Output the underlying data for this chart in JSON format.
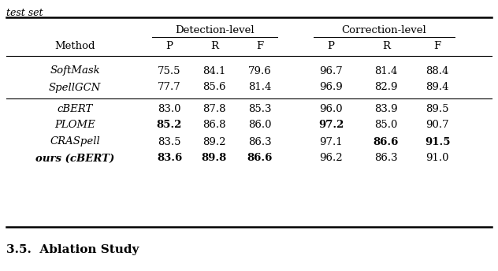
{
  "caption_top": "test set",
  "section_bottom": "3.5.  Ablation Study",
  "col_header_1": "Detection-level",
  "col_header_2": "Correction-level",
  "rows": [
    {
      "method": "SoftMask",
      "values": [
        "75.5",
        "84.1",
        "79.6",
        "96.7",
        "81.4",
        "88.4"
      ],
      "bold": [
        false,
        false,
        false,
        false,
        false,
        false
      ],
      "method_bold": false,
      "group": 1
    },
    {
      "method": "SpellGCN",
      "values": [
        "77.7",
        "85.6",
        "81.4",
        "96.9",
        "82.9",
        "89.4"
      ],
      "bold": [
        false,
        false,
        false,
        false,
        false,
        false
      ],
      "method_bold": false,
      "group": 1
    },
    {
      "method": "cBERT",
      "values": [
        "83.0",
        "87.8",
        "85.3",
        "96.0",
        "83.9",
        "89.5"
      ],
      "bold": [
        false,
        false,
        false,
        false,
        false,
        false
      ],
      "method_bold": false,
      "group": 2
    },
    {
      "method": "PLOME",
      "values": [
        "85.2",
        "86.8",
        "86.0",
        "97.2",
        "85.0",
        "90.7"
      ],
      "bold": [
        true,
        false,
        false,
        true,
        false,
        false
      ],
      "method_bold": false,
      "group": 2
    },
    {
      "method": "CRASpell",
      "values": [
        "83.5",
        "89.2",
        "86.3",
        "97.1",
        "86.6",
        "91.5"
      ],
      "bold": [
        false,
        false,
        false,
        false,
        true,
        true
      ],
      "method_bold": false,
      "group": 2
    },
    {
      "method": "ours (cBERT)",
      "values": [
        "83.6",
        "89.8",
        "86.6",
        "96.2",
        "86.3",
        "91.0"
      ],
      "bold": [
        true,
        true,
        true,
        false,
        false,
        false
      ],
      "method_bold": true,
      "group": 2
    }
  ],
  "background_color": "#ffffff",
  "text_color": "#000000",
  "font_size": 9.5,
  "caption_font_size": 9.0,
  "section_font_size": 11.0
}
